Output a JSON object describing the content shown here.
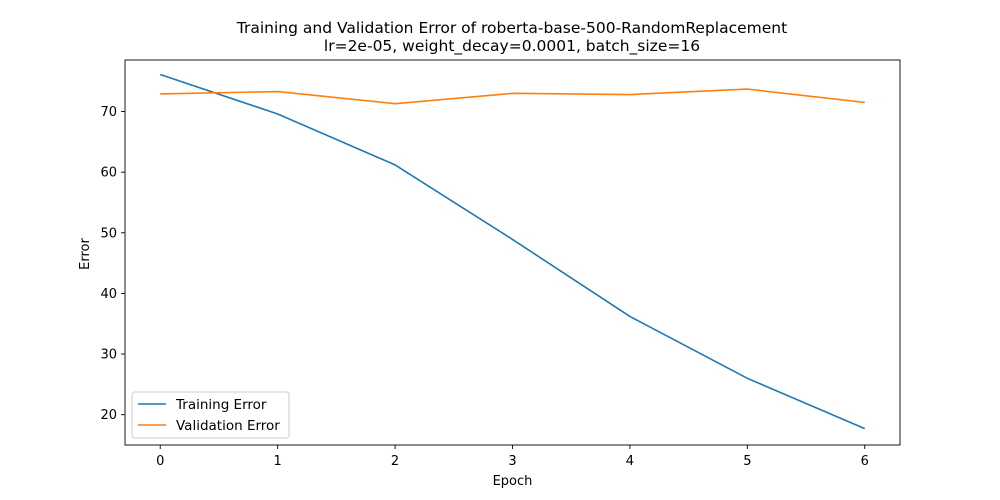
{
  "chart_data": {
    "type": "line",
    "title": "Training and Validation Error of roberta-base-500-RandomReplacement",
    "subtitle": "lr=2e-05, weight_decay=0.0001, batch_size=16",
    "xlabel": "Epoch",
    "ylabel": "Error",
    "x": [
      0,
      1,
      2,
      3,
      4,
      5,
      6
    ],
    "xlim": [
      -0.3,
      6.3
    ],
    "ylim": [
      15,
      78.5
    ],
    "xticks": [
      "0",
      "1",
      "2",
      "3",
      "4",
      "5",
      "6"
    ],
    "yticks": [
      "20",
      "30",
      "40",
      "50",
      "60",
      "70"
    ],
    "grid": false,
    "legend_position": "lower-left",
    "series": [
      {
        "name": "Training Error",
        "color": "#1f77b4",
        "values": [
          76.1,
          69.6,
          61.2,
          48.9,
          36.2,
          26.0,
          17.7
        ]
      },
      {
        "name": "Validation Error",
        "color": "#ff7f0e",
        "values": [
          72.9,
          73.3,
          71.3,
          73.0,
          72.8,
          73.7,
          71.5
        ]
      }
    ]
  }
}
